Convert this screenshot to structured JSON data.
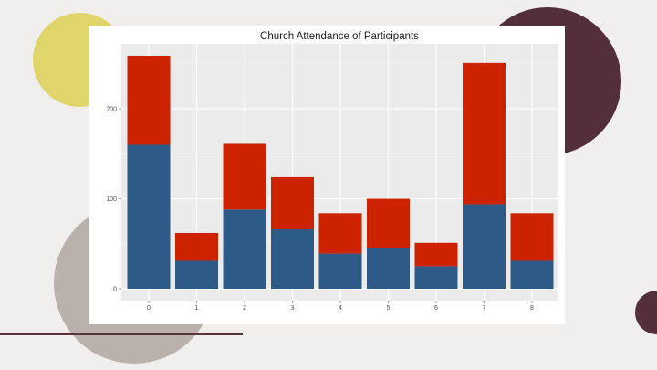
{
  "chart_data": {
    "type": "bar",
    "stacked": true,
    "title": "Church Attendance of Participants",
    "xlabel": "",
    "ylabel": "",
    "categories": [
      "0",
      "1",
      "2",
      "3",
      "4",
      "5",
      "6",
      "7",
      "8"
    ],
    "series": [
      {
        "color": "#2e5a88",
        "values": [
          160,
          31,
          88,
          66,
          39,
          45,
          25,
          94,
          31
        ]
      },
      {
        "color": "#cc2200",
        "values": [
          99,
          31,
          73,
          58,
          45,
          55,
          26,
          157,
          53
        ]
      }
    ],
    "yticks": [
      0,
      100,
      200
    ],
    "ylim": [
      0,
      270
    ],
    "grid": true,
    "panel_background": "#ebebeb"
  },
  "decorations": {
    "colors": {
      "yellow": "#dfd56a",
      "maroon": "#532f3a",
      "taupe": "#bab1ac",
      "slide": "#f1efed"
    }
  }
}
